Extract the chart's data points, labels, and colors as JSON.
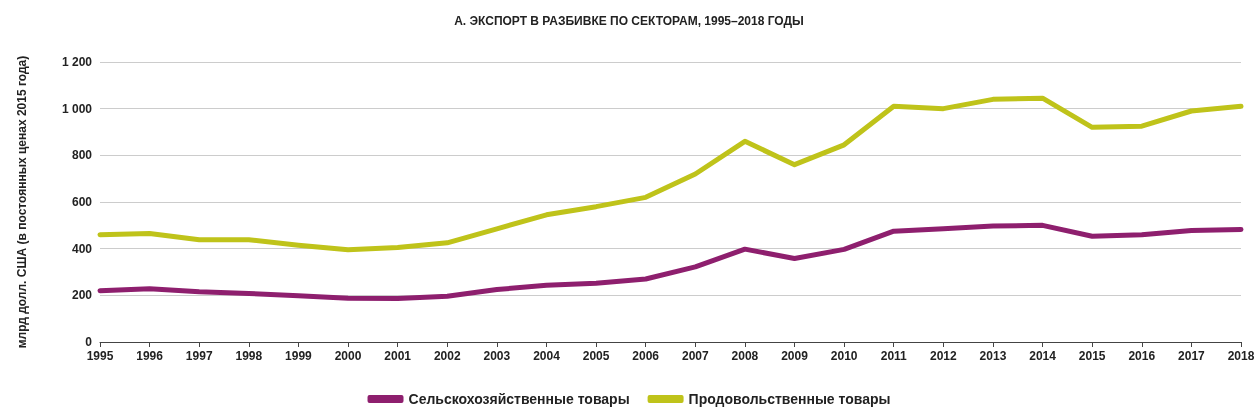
{
  "chart_data": {
    "type": "line",
    "title": "А. ЭКСПОРТ В РАЗБИВКЕ ПО СЕКТОРАМ, 1995–2018 ГОДЫ",
    "ylabel": "млрд долл. США (в постоянных ценах 2015 года)",
    "categories": [
      "1995",
      "1996",
      "1997",
      "1998",
      "1999",
      "2000",
      "2001",
      "2002",
      "2003",
      "2004",
      "2005",
      "2006",
      "2007",
      "2008",
      "2009",
      "2010",
      "2011",
      "2012",
      "2013",
      "2014",
      "2015",
      "2016",
      "2017",
      "2018"
    ],
    "series": [
      {
        "name": "Сельскохозяйственные товары",
        "color": "#8e1f6e",
        "values": [
          220,
          228,
          215,
          208,
          198,
          188,
          186,
          196,
          225,
          243,
          252,
          270,
          322,
          398,
          358,
          397,
          475,
          485,
          497,
          500,
          453,
          460,
          478,
          482
        ]
      },
      {
        "name": "Продовольственные товары",
        "color": "#bfc31a",
        "values": [
          460,
          465,
          438,
          438,
          415,
          395,
          405,
          425,
          485,
          545,
          580,
          620,
          720,
          860,
          760,
          845,
          1010,
          1000,
          1040,
          1045,
          920,
          925,
          990,
          1010
        ]
      }
    ],
    "ylim": [
      0,
      1200
    ],
    "yticks": [
      0,
      200,
      400,
      600,
      800,
      {
        "value": 1000,
        "label": "1 000"
      },
      {
        "value": 1200,
        "label": "1 200"
      }
    ],
    "grid": "y",
    "legend": "bottom",
    "marker": "none",
    "line_style": "solid"
  }
}
